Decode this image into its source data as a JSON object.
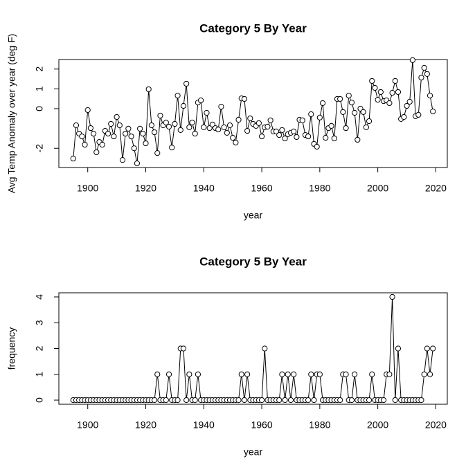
{
  "chart_data": [
    {
      "type": "line",
      "title": "Category 5 By Year",
      "xlabel": "year",
      "ylabel": "Avg Temp Anomaly over year (deg F)",
      "color": "#000000",
      "marker": "circle",
      "x": [
        1895,
        1896,
        1897,
        1898,
        1899,
        1900,
        1901,
        1902,
        1903,
        1904,
        1905,
        1906,
        1907,
        1908,
        1909,
        1910,
        1911,
        1912,
        1913,
        1914,
        1915,
        1916,
        1917,
        1918,
        1919,
        1920,
        1921,
        1922,
        1923,
        1924,
        1925,
        1926,
        1927,
        1928,
        1929,
        1930,
        1931,
        1932,
        1933,
        1934,
        1935,
        1936,
        1937,
        1938,
        1939,
        1940,
        1941,
        1942,
        1943,
        1944,
        1945,
        1946,
        1947,
        1948,
        1949,
        1950,
        1951,
        1952,
        1953,
        1954,
        1955,
        1956,
        1957,
        1958,
        1959,
        1960,
        1961,
        1962,
        1963,
        1964,
        1965,
        1966,
        1967,
        1968,
        1969,
        1970,
        1971,
        1972,
        1973,
        1974,
        1975,
        1976,
        1977,
        1978,
        1979,
        1980,
        1981,
        1982,
        1983,
        1984,
        1985,
        1986,
        1987,
        1988,
        1989,
        1990,
        1991,
        1992,
        1993,
        1994,
        1995,
        1996,
        1997,
        1998,
        1999,
        2000,
        2001,
        2002,
        2003,
        2004,
        2005,
        2006,
        2007,
        2008,
        2009,
        2010,
        2011,
        2012,
        2013,
        2014,
        2015,
        2016,
        2017,
        2018,
        2019
      ],
      "values": [
        -2.52,
        -0.84,
        -1.26,
        -1.4,
        -1.82,
        -0.07,
        -0.98,
        -1.26,
        -2.2,
        -1.68,
        -1.82,
        -1.12,
        -1.26,
        -0.77,
        -1.4,
        -0.42,
        -0.84,
        -2.59,
        -1.26,
        -1.01,
        -1.4,
        -2.0,
        -2.76,
        -1.01,
        -1.26,
        -1.75,
        0.98,
        -0.84,
        -1.19,
        -2.24,
        -0.35,
        -0.84,
        -0.7,
        -0.91,
        -1.96,
        -0.77,
        0.66,
        -1.08,
        0.14,
        1.26,
        -0.94,
        -0.7,
        -1.26,
        0.31,
        0.42,
        -0.94,
        -0.21,
        -0.98,
        -0.8,
        -0.98,
        -1.05,
        0.1,
        -0.94,
        -1.22,
        -0.84,
        -1.47,
        -1.71,
        -0.56,
        0.52,
        0.49,
        -1.12,
        -0.49,
        -0.77,
        -0.87,
        -0.73,
        -1.4,
        -0.94,
        -0.91,
        -0.59,
        -1.15,
        -1.15,
        -1.33,
        -1.08,
        -1.5,
        -1.29,
        -1.22,
        -1.15,
        -1.43,
        -0.56,
        -0.59,
        -1.33,
        -1.4,
        -0.28,
        -1.78,
        -1.92,
        -0.45,
        0.28,
        -1.47,
        -0.98,
        -0.87,
        -1.5,
        0.49,
        0.49,
        -0.17,
        -0.98,
        0.66,
        0.31,
        -0.21,
        -1.57,
        0,
        -0.17,
        -0.94,
        -0.63,
        1.4,
        1.05,
        0.45,
        0.84,
        0.38,
        0.42,
        0.28,
        0.8,
        1.4,
        0.84,
        -0.52,
        -0.42,
        0.14,
        0.35,
        2.45,
        -0.38,
        -0.31,
        1.57,
        2.06,
        1.75,
        0.66,
        -0.14
      ],
      "xlim": [
        1890.04,
        2023.96
      ],
      "ylim": [
        -2.97,
        2.48
      ],
      "xticks": [
        1900,
        1920,
        1940,
        1960,
        1980,
        2000,
        2020
      ],
      "yticks": [
        -2,
        0,
        1,
        2
      ]
    },
    {
      "type": "line",
      "title": "Category 5 By Year",
      "xlabel": "year",
      "ylabel": "frequency",
      "color": "#000000",
      "marker": "circle",
      "x": [
        1895,
        1896,
        1897,
        1898,
        1899,
        1900,
        1901,
        1902,
        1903,
        1904,
        1905,
        1906,
        1907,
        1908,
        1909,
        1910,
        1911,
        1912,
        1913,
        1914,
        1915,
        1916,
        1917,
        1918,
        1919,
        1920,
        1921,
        1922,
        1923,
        1924,
        1925,
        1926,
        1927,
        1928,
        1929,
        1930,
        1931,
        1932,
        1933,
        1934,
        1935,
        1936,
        1937,
        1938,
        1939,
        1940,
        1941,
        1942,
        1943,
        1944,
        1945,
        1946,
        1947,
        1948,
        1949,
        1950,
        1951,
        1952,
        1953,
        1954,
        1955,
        1956,
        1957,
        1958,
        1959,
        1960,
        1961,
        1962,
        1963,
        1964,
        1965,
        1966,
        1967,
        1968,
        1969,
        1970,
        1971,
        1972,
        1973,
        1974,
        1975,
        1976,
        1977,
        1978,
        1979,
        1980,
        1981,
        1982,
        1983,
        1984,
        1985,
        1986,
        1987,
        1988,
        1989,
        1990,
        1991,
        1992,
        1993,
        1994,
        1995,
        1996,
        1997,
        1998,
        1999,
        2000,
        2001,
        2002,
        2003,
        2004,
        2005,
        2006,
        2007,
        2008,
        2009,
        2010,
        2011,
        2012,
        2013,
        2014,
        2015,
        2016,
        2017,
        2018,
        2019
      ],
      "values": [
        0,
        0,
        0,
        0,
        0,
        0,
        0,
        0,
        0,
        0,
        0,
        0,
        0,
        0,
        0,
        0,
        0,
        0,
        0,
        0,
        0,
        0,
        0,
        0,
        0,
        0,
        0,
        0,
        0,
        1,
        0,
        0,
        0,
        1,
        0,
        0,
        0,
        2,
        2,
        0,
        1,
        0,
        0,
        1,
        0,
        0,
        0,
        0,
        0,
        0,
        0,
        0,
        0,
        0,
        0,
        0,
        0,
        0,
        1,
        0,
        1,
        0,
        0,
        0,
        0,
        0,
        2,
        0,
        0,
        0,
        0,
        0,
        1,
        0,
        1,
        0,
        1,
        0,
        0,
        0,
        0,
        0,
        1,
        0,
        1,
        1,
        0,
        0,
        0,
        0,
        0,
        0,
        0,
        1,
        1,
        0,
        0,
        1,
        0,
        0,
        0,
        0,
        0,
        1,
        0,
        0,
        0,
        0,
        1,
        1,
        4,
        0,
        2,
        0,
        0,
        0,
        0,
        0,
        0,
        0,
        0,
        1,
        2,
        1,
        2
      ],
      "xlim": [
        1890.04,
        2023.96
      ],
      "ylim": [
        -0.16,
        4.16
      ],
      "xticks": [
        1900,
        1920,
        1940,
        1960,
        1980,
        2000,
        2020
      ],
      "yticks": [
        0,
        1,
        2,
        3,
        4
      ]
    }
  ]
}
